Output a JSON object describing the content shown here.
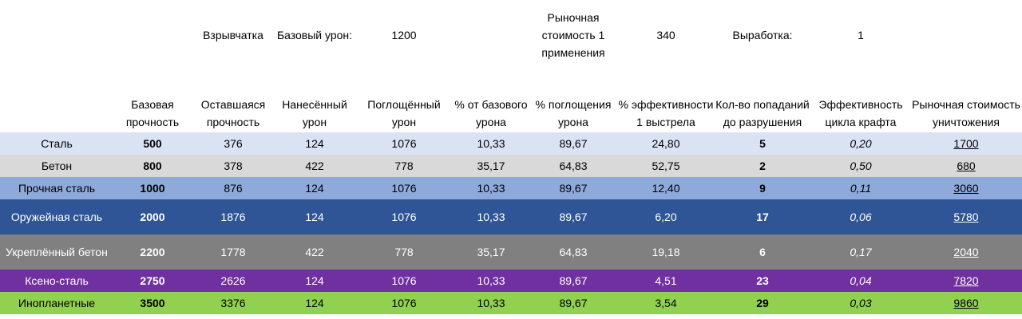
{
  "top": {
    "explosive": "Взрывчатка",
    "base_damage_label": "Базовый урон:",
    "base_damage_value": "1200",
    "market_cost_label": "Рыночная стоимость 1 применения",
    "market_cost_value": "340",
    "output_label": "Выработка:",
    "output_value": "1"
  },
  "headers": {
    "base_strength": "Базовая прочность",
    "remaining_strength": "Оставшаяся прочность",
    "damage_dealt": "Нанесённый урон",
    "absorbed_damage": "Поглощённый урон",
    "pct_base_damage": "% от базового урона",
    "pct_absorption": "% поглощения урона",
    "pct_shot_efficiency": "% эффективности 1 выстрела",
    "hits_to_destroy": "Кол-во попаданий до разрушения",
    "craft_efficiency": "Эффективность цикла крафта",
    "destroy_market_cost": "Рыночная стоимость уничтожения"
  },
  "rows": [
    {
      "name": "Сталь",
      "base": "500",
      "remaining": "376",
      "dealt": "124",
      "absorbed": "1076",
      "pct_base": "10,33",
      "pct_abs": "89,67",
      "pct_eff": "24,80",
      "hits": "5",
      "craft": "0,20",
      "cost": "1700"
    },
    {
      "name": "Бетон",
      "base": "800",
      "remaining": "378",
      "dealt": "422",
      "absorbed": "778",
      "pct_base": "35,17",
      "pct_abs": "64,83",
      "pct_eff": "52,75",
      "hits": "2",
      "craft": "0,50",
      "cost": "680"
    },
    {
      "name": "Прочная сталь",
      "base": "1000",
      "remaining": "876",
      "dealt": "124",
      "absorbed": "1076",
      "pct_base": "10,33",
      "pct_abs": "89,67",
      "pct_eff": "12,40",
      "hits": "9",
      "craft": "0,11",
      "cost": "3060"
    },
    {
      "name": "Оружейная сталь",
      "base": "2000",
      "remaining": "1876",
      "dealt": "124",
      "absorbed": "1076",
      "pct_base": "10,33",
      "pct_abs": "89,67",
      "pct_eff": "6,20",
      "hits": "17",
      "craft": "0,06",
      "cost": "5780"
    },
    {
      "name": "Укреплённый бетон",
      "base": "2200",
      "remaining": "1778",
      "dealt": "422",
      "absorbed": "778",
      "pct_base": "35,17",
      "pct_abs": "64,83",
      "pct_eff": "19,18",
      "hits": "6",
      "craft": "0,17",
      "cost": "2040"
    },
    {
      "name": "Ксено-сталь",
      "base": "2750",
      "remaining": "2626",
      "dealt": "124",
      "absorbed": "1076",
      "pct_base": "10,33",
      "pct_abs": "89,67",
      "pct_eff": "4,51",
      "hits": "23",
      "craft": "0,04",
      "cost": "7820"
    },
    {
      "name": "Инопланетные",
      "base": "3500",
      "remaining": "3376",
      "dealt": "124",
      "absorbed": "1076",
      "pct_base": "10,33",
      "pct_abs": "89,67",
      "pct_eff": "3,54",
      "hits": "29",
      "craft": "0,03",
      "cost": "9860"
    }
  ],
  "colors": {
    "steel": "#dae3f3",
    "concrete": "#d9d9d9",
    "hard_steel": "#8eaadb",
    "weapon_steel": "#2f5597",
    "reinforced_concrete": "#808080",
    "xeno_steel": "#7030a0",
    "alien": "#92d050"
  }
}
